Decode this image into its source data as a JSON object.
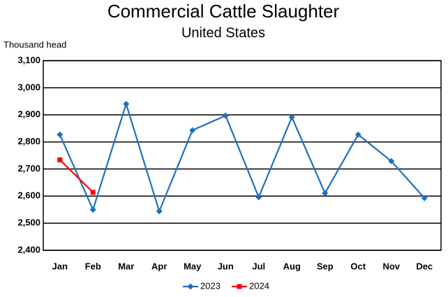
{
  "chart_data": {
    "type": "line",
    "title": "Commercial Cattle Slaughter",
    "subtitle": "United States",
    "y_label": "Thousand head",
    "categories": [
      "Jan",
      "Feb",
      "Mar",
      "Apr",
      "May",
      "Jun",
      "Jul",
      "Aug",
      "Sep",
      "Oct",
      "Nov",
      "Dec"
    ],
    "series": [
      {
        "name": "2023",
        "color": "#1f6fbf",
        "marker": "diamond",
        "values": [
          2827,
          2550,
          2940,
          2544,
          2843,
          2897,
          2596,
          2891,
          2611,
          2827,
          2729,
          2593
        ]
      },
      {
        "name": "2024",
        "color": "#ff0000",
        "marker": "square",
        "values": [
          2734,
          2614,
          null,
          null,
          null,
          null,
          null,
          null,
          null,
          null,
          null,
          null
        ]
      }
    ],
    "ylim": [
      2400,
      3100
    ],
    "yticks": [
      {
        "value": 2400,
        "label": "2,400"
      },
      {
        "value": 2500,
        "label": "2,500"
      },
      {
        "value": 2600,
        "label": "2,600"
      },
      {
        "value": 2700,
        "label": "2,700"
      },
      {
        "value": 2800,
        "label": "2,800"
      },
      {
        "value": 2900,
        "label": "2,900"
      },
      {
        "value": 3000,
        "label": "3,000"
      },
      {
        "value": 3100,
        "label": "3,100"
      }
    ],
    "grid": true,
    "legend": "bottom"
  }
}
